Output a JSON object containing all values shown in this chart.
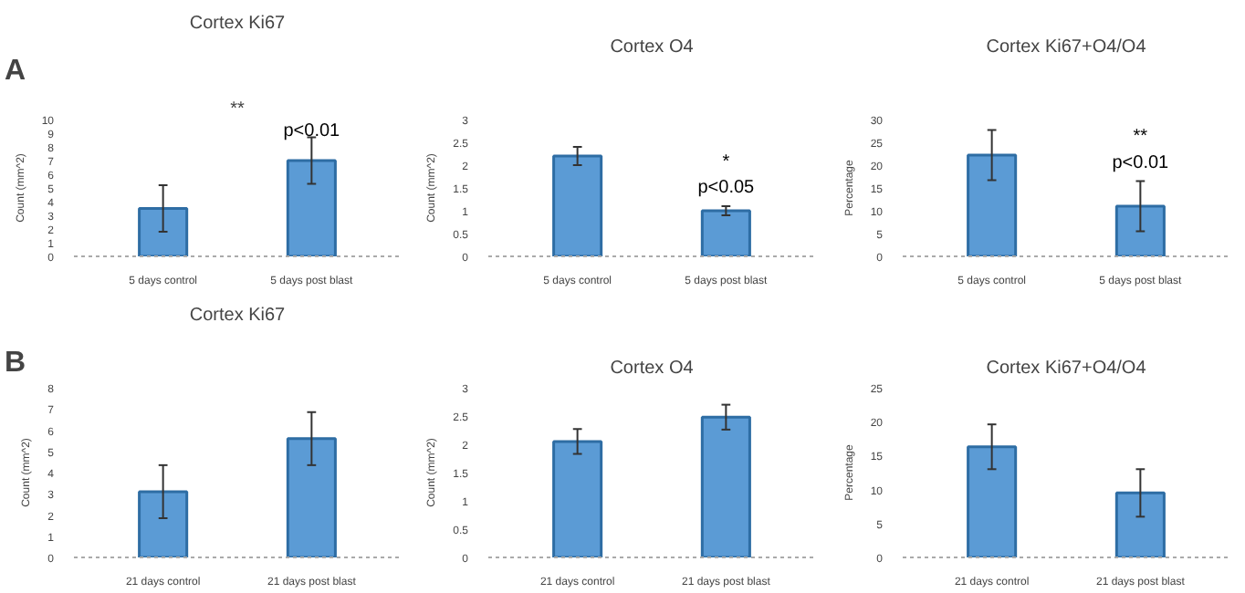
{
  "chart_data": [
    {
      "type": "bar",
      "title": "Cortex Ki67",
      "ylabel": "Count (mm^2)",
      "categories": [
        "5 days control",
        "5 days post blast"
      ],
      "values": [
        3.5,
        7.0
      ],
      "errors": [
        1.7,
        1.7
      ],
      "color": "#5b9bd5",
      "ylim": [
        0,
        10
      ],
      "yticks": [
        0,
        1,
        2,
        3,
        4,
        5,
        6,
        7,
        8,
        9,
        10
      ],
      "annotations": [
        "A",
        "**",
        "p<0.01"
      ]
    },
    {
      "type": "bar",
      "title": "Cortex O4",
      "ylabel": "Count (mm^2)",
      "categories": [
        "5 days control",
        "5 days post blast"
      ],
      "values": [
        2.2,
        1.0
      ],
      "errors": [
        0.2,
        0.1
      ],
      "color": "#5b9bd5",
      "ylim": [
        0,
        3
      ],
      "yticks": [
        0,
        0.5,
        1,
        1.5,
        2,
        2.5,
        3
      ],
      "annotations": [
        "*",
        "p<0.05"
      ]
    },
    {
      "type": "bar",
      "title": "Cortex Ki67+O4/O4",
      "ylabel": "Percentage",
      "categories": [
        "5 days control",
        "5 days post blast"
      ],
      "values": [
        22.2,
        11.0
      ],
      "errors": [
        5.5,
        5.5
      ],
      "color": "#5b9bd5",
      "ylim": [
        0,
        30
      ],
      "yticks": [
        0,
        5,
        10,
        15,
        20,
        25,
        30
      ],
      "annotations": [
        "**",
        "p<0.01"
      ]
    },
    {
      "type": "bar",
      "title": "Cortex Ki67",
      "ylabel": "Count (mm^2)",
      "categories": [
        "21 days control",
        "21 days post blast"
      ],
      "values": [
        3.1,
        5.6
      ],
      "errors": [
        1.25,
        1.25
      ],
      "color": "#5b9bd5",
      "ylim": [
        0,
        8
      ],
      "yticks": [
        0,
        1,
        2,
        3,
        4,
        5,
        6,
        7,
        8
      ],
      "annotations": [
        "B"
      ]
    },
    {
      "type": "bar",
      "title": "Cortex O4",
      "ylabel": "Count (mm^2)",
      "categories": [
        "21 days control",
        "21 days post blast"
      ],
      "values": [
        2.05,
        2.48
      ],
      "errors": [
        0.22,
        0.22
      ],
      "color": "#5b9bd5",
      "ylim": [
        0,
        3
      ],
      "yticks": [
        0,
        0.5,
        1,
        1.5,
        2,
        2.5,
        3
      ]
    },
    {
      "type": "bar",
      "title": "Cortex Ki67+O4/O4",
      "ylabel": "Percentage",
      "categories": [
        "21 days control",
        "21 days post blast"
      ],
      "values": [
        16.3,
        9.5
      ],
      "errors": [
        3.3,
        3.5
      ],
      "color": "#5b9bd5",
      "ylim": [
        0,
        25
      ],
      "yticks": [
        0,
        5,
        10,
        15,
        20,
        25
      ]
    }
  ]
}
